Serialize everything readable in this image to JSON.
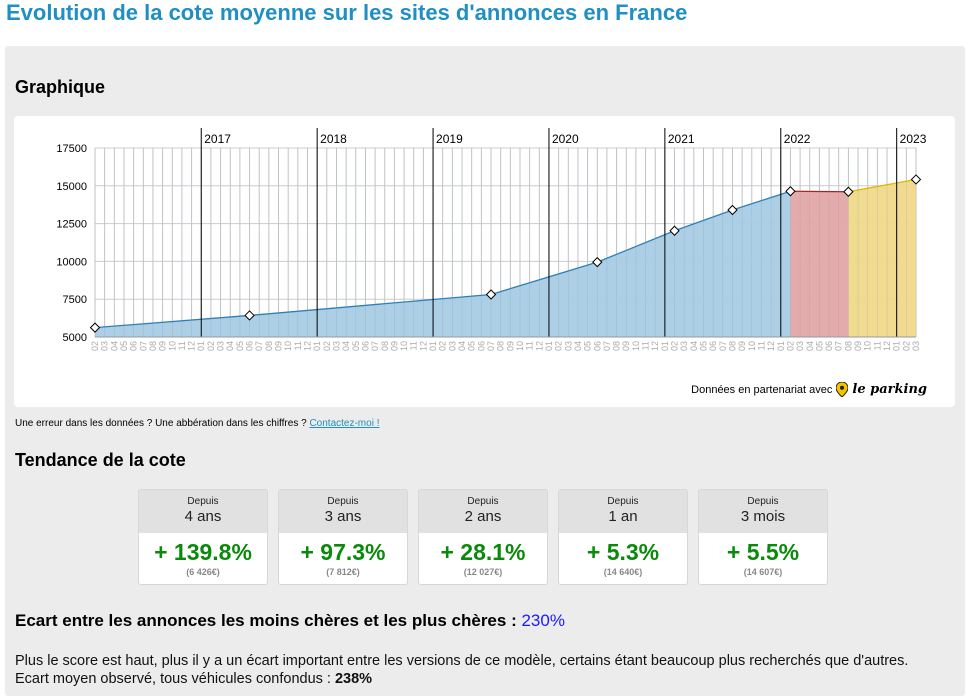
{
  "page_title": "Evolution de la cote moyenne sur les sites d'annonces en France",
  "graph_title": "Graphique",
  "partner": {
    "text": "Données en partenariat avec",
    "brand": "le parking",
    "icon": "map-pin-icon"
  },
  "error_text": "Une erreur dans les données ? Une abbération dans les chiffres ?",
  "contact_link": "Contactez-moi !",
  "trend_title": "Tendance de la cote",
  "cards": [
    {
      "since": "Depuis",
      "period": "4 ans",
      "change": "+ 139.8%",
      "price": "(6 426€)"
    },
    {
      "since": "Depuis",
      "period": "3 ans",
      "change": "+ 97.3%",
      "price": "(7 812€)"
    },
    {
      "since": "Depuis",
      "period": "2 ans",
      "change": "+ 28.1%",
      "price": "(12 027€)"
    },
    {
      "since": "Depuis",
      "period": "1 an",
      "change": "+ 5.3%",
      "price": "(14 640€)"
    },
    {
      "since": "Depuis",
      "period": "3 mois",
      "change": "+ 5.5%",
      "price": "(14 607€)"
    }
  ],
  "ecart": {
    "label": "Ecart entre les annonces les moins chères et les plus chères :",
    "value": "230%"
  },
  "paragraph": {
    "text": "Plus le score est haut, plus il y a un écart important entre les versions de ce modèle, certains étant beaucoup plus recherchés que d'autres. Ecart moyen observé, tous véhicules confondus :",
    "value": "238%"
  },
  "colors": {
    "title": "#1f8fc4",
    "area": "#a8cce4",
    "line": "#2e7fb5",
    "red_area": "#e3a6a8",
    "red_line": "#b02020",
    "yellow_area": "#efd98a",
    "yellow_line": "#e0b800",
    "positive": "#0a8a0a"
  },
  "chart_data": {
    "type": "area",
    "start": "2016-02",
    "end": "2023-03",
    "x_tick_months": [
      "02",
      "03",
      "04",
      "05",
      "06",
      "07",
      "08",
      "09",
      "10",
      "11",
      "12",
      "01",
      "02",
      "03",
      "04",
      "05",
      "06",
      "07",
      "08",
      "09",
      "10",
      "11",
      "12",
      "01",
      "02",
      "03",
      "04",
      "05",
      "06",
      "07",
      "08",
      "09",
      "10",
      "11",
      "12",
      "01",
      "02",
      "03",
      "04",
      "05",
      "06",
      "07",
      "08",
      "09",
      "10",
      "11",
      "12",
      "01",
      "02",
      "03",
      "04",
      "05",
      "06",
      "07",
      "08",
      "09",
      "10",
      "11",
      "12",
      "01",
      "02",
      "03",
      "04",
      "05",
      "06",
      "07",
      "08",
      "09",
      "10",
      "11",
      "12",
      "01",
      "02",
      "03",
      "04",
      "05",
      "06",
      "07",
      "08",
      "09",
      "10",
      "11",
      "12",
      "01",
      "02",
      "03"
    ],
    "year_labels": [
      {
        "label": "2017",
        "month": "2017-01"
      },
      {
        "label": "2018",
        "month": "2018-01"
      },
      {
        "label": "2019",
        "month": "2019-01"
      },
      {
        "label": "2020",
        "month": "2020-01"
      },
      {
        "label": "2021",
        "month": "2021-01"
      },
      {
        "label": "2022",
        "month": "2022-01"
      },
      {
        "label": "2023",
        "month": "2023-01"
      }
    ],
    "y_ticks": [
      5000,
      7500,
      10000,
      12500,
      15000,
      17500
    ],
    "ylim": [
      5000,
      17500
    ],
    "series": [
      {
        "segment": "history",
        "points": [
          {
            "x": "2016-02",
            "y": 5620
          },
          {
            "x": "2017-06",
            "y": 6426
          },
          {
            "x": "2019-07",
            "y": 7812
          },
          {
            "x": "2020-06",
            "y": 9950
          },
          {
            "x": "2021-02",
            "y": 12027
          },
          {
            "x": "2021-08",
            "y": 13400
          },
          {
            "x": "2022-02",
            "y": 14640
          }
        ]
      },
      {
        "segment": "stable",
        "points": [
          {
            "x": "2022-02",
            "y": 14640
          },
          {
            "x": "2022-08",
            "y": 14607
          }
        ]
      },
      {
        "segment": "recent",
        "points": [
          {
            "x": "2022-08",
            "y": 14607
          },
          {
            "x": "2023-03",
            "y": 15420
          }
        ]
      }
    ]
  }
}
